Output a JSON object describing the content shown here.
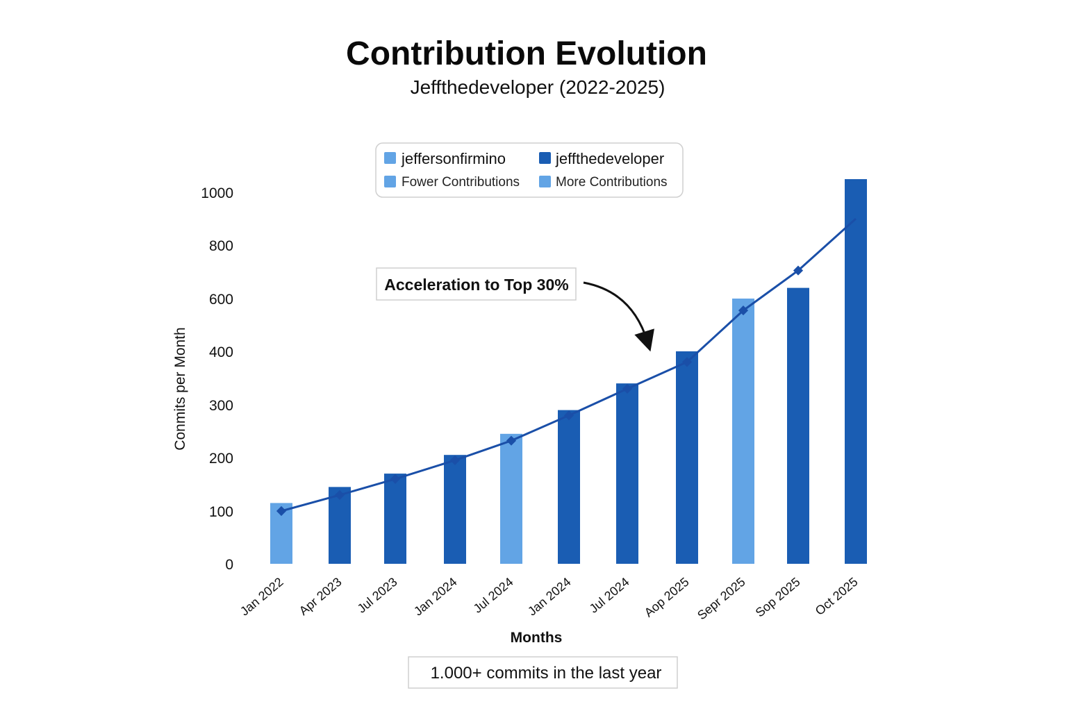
{
  "chart_data": {
    "type": "bar",
    "title": "Contribution Evolution",
    "subtitle": "Jeffthedeveloper (2022-2025)",
    "xlabel": "Months",
    "ylabel": "Conmits per Month",
    "y_ticks": [
      {
        "label": "0",
        "value": 0
      },
      {
        "label": "100",
        "value": 100
      },
      {
        "label": "200",
        "value": 200
      },
      {
        "label": "300",
        "value": 300
      },
      {
        "label": "400",
        "value": 400
      },
      {
        "label": "600",
        "value": 600
      },
      {
        "label": "800",
        "value": 800
      },
      {
        "label": "1000",
        "value": 1000
      }
    ],
    "categories": [
      "Jan 2022",
      "Apr 2023",
      "Jul 2023",
      "Jan 2024",
      "Jul 2024",
      "Jan 2024",
      "Jul 2024",
      "Aop 2025",
      "Sepr 2025",
      "Sop 2025",
      "Oct 2025"
    ],
    "series": [
      {
        "type": "bar",
        "values": [
          115,
          145,
          170,
          205,
          245,
          290,
          340,
          400,
          600,
          640,
          1050
        ],
        "color_keys": [
          "light",
          "dark",
          "dark",
          "dark",
          "light",
          "dark",
          "dark",
          "dark",
          "light",
          "dark",
          "dark"
        ]
      },
      {
        "type": "line",
        "values": [
          100,
          130,
          160,
          195,
          232,
          280,
          330,
          380,
          555,
          705,
          900
        ]
      }
    ],
    "colors": {
      "dark": "#1a5db3",
      "light": "#62a4e5",
      "line": "#1a4fa8"
    },
    "legend": {
      "placement": "top-center",
      "entries": [
        {
          "label": "jeffersonfirmino",
          "color_key": "light"
        },
        {
          "label": "jeffthedeveloper",
          "color_key": "dark"
        },
        {
          "label": "Fower Contributions",
          "color_key": "light"
        },
        {
          "label": "More Contributions",
          "color_key": "light"
        }
      ]
    },
    "annotation": {
      "text": "Acceleration to Top 30%"
    },
    "note": "1.000+ commits in the last year",
    "grid": false
  }
}
